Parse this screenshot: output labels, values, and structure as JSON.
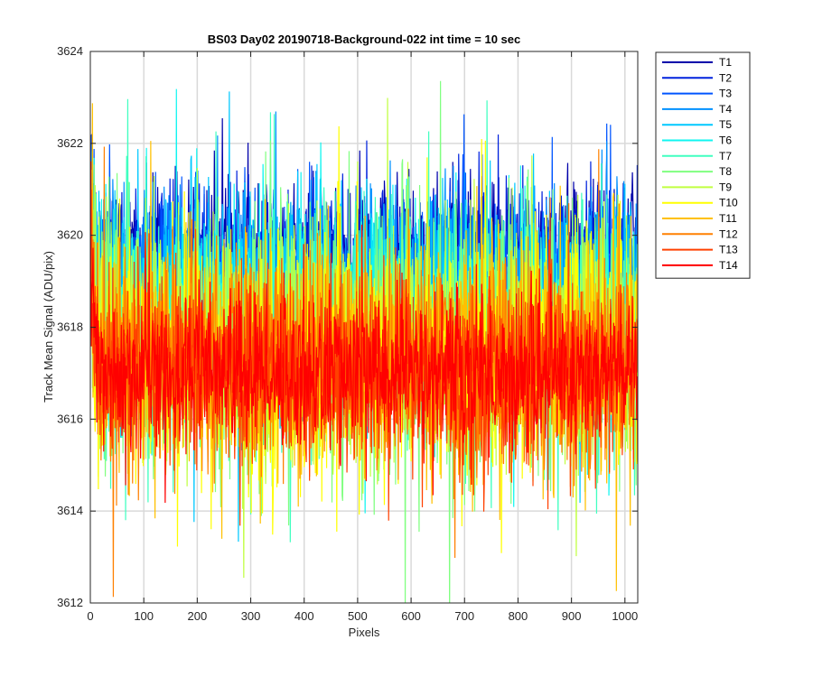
{
  "chart_data": {
    "type": "line",
    "title": "BS03 Day02 20190718-Background-022 int time = 10 sec",
    "xlabel": "Pixels",
    "ylabel": "Track Mean Signal (ADU/pix)",
    "xlim": [
      0,
      1024
    ],
    "ylim": [
      3612,
      3624
    ],
    "xticks": [
      0,
      100,
      200,
      300,
      400,
      500,
      600,
      700,
      800,
      900,
      1000
    ],
    "yticks": [
      3612,
      3614,
      3616,
      3618,
      3620,
      3622,
      3624
    ],
    "grid": true,
    "legend_position": "outside-top-right",
    "n_points": 1024,
    "series": [
      {
        "name": "T1",
        "color": "#0000aa",
        "mean": 3619.6,
        "noise_sd": 0.75
      },
      {
        "name": "T2",
        "color": "#0022dd",
        "mean": 3619.3,
        "noise_sd": 0.85
      },
      {
        "name": "T3",
        "color": "#0055ff",
        "mean": 3619.0,
        "noise_sd": 0.95
      },
      {
        "name": "T4",
        "color": "#0090ff",
        "mean": 3618.7,
        "noise_sd": 1.05
      },
      {
        "name": "T5",
        "color": "#00c8ff",
        "mean": 3618.4,
        "noise_sd": 1.15
      },
      {
        "name": "T6",
        "color": "#10f5f0",
        "mean": 3618.1,
        "noise_sd": 1.25
      },
      {
        "name": "T7",
        "color": "#40ffc0",
        "mean": 3617.8,
        "noise_sd": 1.35
      },
      {
        "name": "T8",
        "color": "#80ff80",
        "mean": 3617.6,
        "noise_sd": 1.4
      },
      {
        "name": "T9",
        "color": "#c0ff40",
        "mean": 3617.5,
        "noise_sd": 1.35
      },
      {
        "name": "T10",
        "color": "#ffff00",
        "mean": 3617.4,
        "noise_sd": 1.3
      },
      {
        "name": "T11",
        "color": "#ffc000",
        "mean": 3617.3,
        "noise_sd": 1.25
      },
      {
        "name": "T12",
        "color": "#ff8000",
        "mean": 3617.2,
        "noise_sd": 1.15
      },
      {
        "name": "T13",
        "color": "#ff4000",
        "mean": 3617.0,
        "noise_sd": 1.0
      },
      {
        "name": "T14",
        "color": "#ff0000",
        "mean": 3617.0,
        "noise_sd": 0.85
      }
    ]
  }
}
